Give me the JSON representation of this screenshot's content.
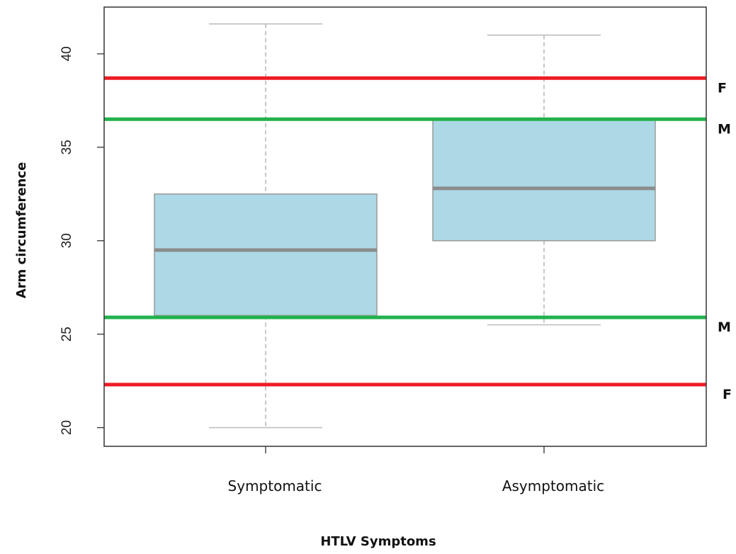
{
  "chart_data": {
    "type": "boxplot",
    "title": "",
    "xlabel": "HTLV Symptoms",
    "ylabel": "Arm circumference",
    "ylim": [
      19,
      42.5
    ],
    "yticks": [
      20,
      25,
      30,
      35,
      40
    ],
    "categories": [
      "Symptomatic",
      "Asymptomatic"
    ],
    "boxes": [
      {
        "category": "Symptomatic",
        "min": 20,
        "q1": 26,
        "median": 29.5,
        "q3": 32.5,
        "max": 41.6
      },
      {
        "category": "Asymptomatic",
        "min": 25.5,
        "q1": 30,
        "median": 32.8,
        "q3": 36.5,
        "max": 41
      }
    ],
    "box_color": "#add8e6",
    "reference_lines": [
      {
        "label": "F",
        "value": 38.7,
        "color": "#ee1c24"
      },
      {
        "label": "M",
        "value": 36.5,
        "color": "#22b14c"
      },
      {
        "label": "M",
        "value": 25.9,
        "color": "#22b14c"
      },
      {
        "label": "F",
        "value": 22.3,
        "color": "#ee1c24"
      }
    ],
    "grid": false,
    "legend": "none"
  }
}
